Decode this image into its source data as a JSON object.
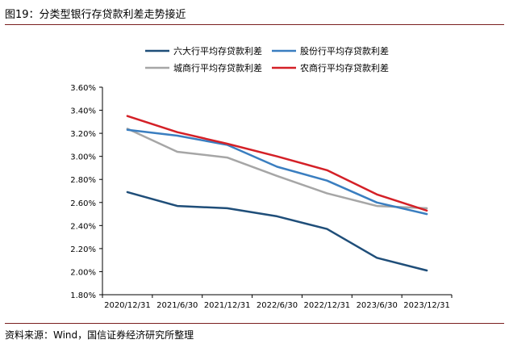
{
  "header": {
    "title": "图19：分类型银行存贷款利差走势接近"
  },
  "footer": {
    "source": "资料来源：Wind，国信证券经济研究所整理"
  },
  "chart_data": {
    "type": "line",
    "x": [
      "2020/12/31",
      "2021/6/30",
      "2021/12/31",
      "2022/6/30",
      "2022/12/31",
      "2023/6/30",
      "2023/12/31"
    ],
    "ylim": [
      1.8,
      3.6
    ],
    "yticks": [
      "3.60%",
      "3.40%",
      "3.20%",
      "3.00%",
      "2.80%",
      "2.60%",
      "2.40%",
      "2.20%",
      "2.00%",
      "1.80%"
    ],
    "ytick_values": [
      3.6,
      3.4,
      3.2,
      3.0,
      2.8,
      2.6,
      2.4,
      2.2,
      2.0,
      1.8
    ],
    "grid": false,
    "legend_position": "top",
    "series": [
      {
        "name": "六大行平均存贷款利差",
        "color": "#1f4e79",
        "values": [
          2.69,
          2.57,
          2.55,
          2.48,
          2.37,
          2.12,
          2.01
        ]
      },
      {
        "name": "股份行平均存贷款利差",
        "color": "#3a7ec0",
        "values": [
          3.23,
          3.18,
          3.1,
          2.91,
          2.79,
          2.6,
          2.5
        ]
      },
      {
        "name": "城商行平均存贷款利差",
        "color": "#a6a6a6",
        "values": [
          3.24,
          3.04,
          2.99,
          2.83,
          2.68,
          2.57,
          2.55
        ]
      },
      {
        "name": "农商行平均存贷款利差",
        "color": "#d42027",
        "values": [
          3.35,
          3.21,
          3.11,
          3.0,
          2.88,
          2.67,
          2.53
        ]
      }
    ]
  }
}
